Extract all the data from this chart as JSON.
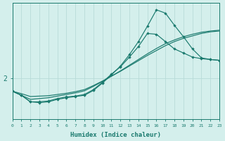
{
  "xlabel": "Humidex (Indice chaleur)",
  "bg_color": "#d4efec",
  "line_color": "#1a7a6e",
  "grid_color": "#b8dbd8",
  "text_color": "#1a7a6e",
  "xlim": [
    0,
    23
  ],
  "ylim": [
    1.0,
    3.85
  ],
  "ytick_val": 2.0,
  "ytick_label": "2",
  "xticks": [
    0,
    1,
    2,
    3,
    4,
    5,
    6,
    7,
    8,
    9,
    10,
    11,
    12,
    13,
    14,
    15,
    16,
    17,
    18,
    19,
    20,
    21,
    22,
    23
  ],
  "line1_x": [
    0,
    1,
    2,
    3,
    4,
    5,
    6,
    7,
    8,
    9,
    10,
    11,
    12,
    13,
    14,
    15,
    16,
    17,
    18,
    19,
    20,
    21,
    22,
    23
  ],
  "line1_y": [
    1.68,
    1.62,
    1.55,
    1.56,
    1.57,
    1.6,
    1.63,
    1.67,
    1.72,
    1.82,
    1.93,
    2.05,
    2.17,
    2.3,
    2.43,
    2.56,
    2.68,
    2.8,
    2.9,
    2.98,
    3.04,
    3.1,
    3.14,
    3.16
  ],
  "line2_x": [
    0,
    1,
    2,
    3,
    4,
    5,
    6,
    7,
    8,
    9,
    10,
    11,
    12,
    13,
    14,
    15,
    16,
    17,
    18,
    19,
    20,
    21,
    22,
    23
  ],
  "line2_y": [
    1.68,
    1.58,
    1.48,
    1.5,
    1.52,
    1.56,
    1.6,
    1.64,
    1.69,
    1.8,
    1.92,
    2.05,
    2.18,
    2.32,
    2.46,
    2.6,
    2.73,
    2.85,
    2.94,
    3.02,
    3.08,
    3.13,
    3.16,
    3.18
  ],
  "line3_x": [
    0,
    1,
    2,
    3,
    4,
    5,
    6,
    7,
    8,
    9,
    10,
    11,
    12,
    13,
    14,
    15,
    16,
    17,
    18,
    19,
    20,
    21,
    22,
    23
  ],
  "line3_y": [
    1.68,
    1.58,
    1.42,
    1.42,
    1.44,
    1.5,
    1.54,
    1.56,
    1.6,
    1.72,
    1.9,
    2.1,
    2.28,
    2.52,
    2.78,
    3.1,
    3.08,
    2.9,
    2.72,
    2.62,
    2.52,
    2.48,
    2.46,
    2.44
  ],
  "line4_x": [
    0,
    1,
    2,
    3,
    4,
    5,
    6,
    7,
    8,
    9,
    10,
    11,
    12,
    13,
    14,
    15,
    16,
    17,
    18,
    19,
    20,
    21,
    22,
    23
  ],
  "line4_y": [
    1.68,
    1.58,
    1.42,
    1.4,
    1.42,
    1.48,
    1.52,
    1.55,
    1.58,
    1.7,
    1.88,
    2.08,
    2.3,
    2.58,
    2.9,
    3.28,
    3.68,
    3.6,
    3.3,
    3.02,
    2.72,
    2.5,
    2.46,
    2.44
  ],
  "line1_markers": false,
  "line2_markers": false,
  "line3_markers": true,
  "line4_markers": true
}
